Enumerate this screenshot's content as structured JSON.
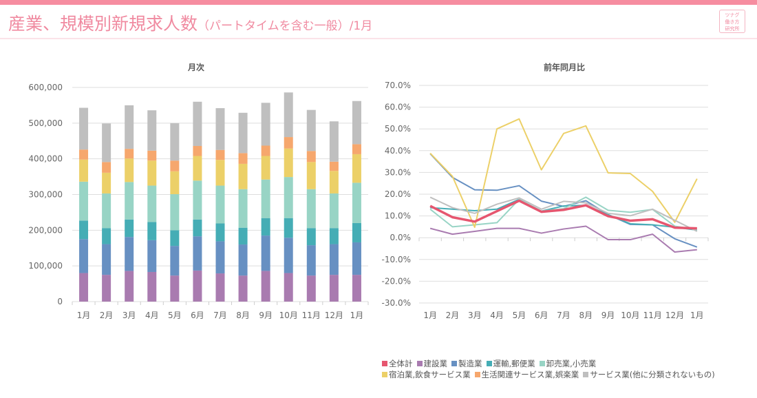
{
  "header": {
    "title": "産業、規模別新規求人数",
    "subtitle": "（パートタイムを含む一般）",
    "month": "/1月",
    "logo": "ツナグ働き方研究所"
  },
  "series_meta": [
    {
      "name": "全体計",
      "color": "#e6566f"
    },
    {
      "name": "建設業",
      "color": "#a97bb0"
    },
    {
      "name": "製造業",
      "color": "#6790c2"
    },
    {
      "name": "運輸,郵便業",
      "color": "#45adb5"
    },
    {
      "name": "卸売業,小売業",
      "color": "#98d4c5"
    },
    {
      "name": "宿泊業,飲食サービス業",
      "color": "#ecd068"
    },
    {
      "name": "生活関連サービス業,娯楽業",
      "color": "#f6a76d"
    },
    {
      "name": "サービス業(他に分類されないもの)",
      "color": "#bfbfbf"
    }
  ],
  "chart_data": [
    {
      "type": "bar",
      "stacked": true,
      "title": "月次",
      "categories": [
        "1月",
        "2月",
        "3月",
        "4月",
        "5月",
        "6月",
        "7月",
        "8月",
        "9月",
        "10月",
        "11月",
        "12月",
        "1月"
      ],
      "ylim": [
        0,
        600000
      ],
      "yticks": [
        "0",
        "100,000",
        "200,000",
        "300,000",
        "400,000",
        "500,000",
        "600,000"
      ],
      "grid": true,
      "series": [
        {
          "name": "建設業",
          "values": [
            80000,
            75000,
            86000,
            83000,
            73000,
            87000,
            79000,
            73000,
            86000,
            80000,
            73000,
            75000,
            75000
          ]
        },
        {
          "name": "製造業",
          "values": [
            95000,
            86000,
            95000,
            89000,
            83000,
            96000,
            90000,
            87000,
            99000,
            99000,
            85000,
            86000,
            91000
          ]
        },
        {
          "name": "運輸,郵便業",
          "values": [
            52000,
            45000,
            49000,
            51000,
            44000,
            47000,
            50000,
            47000,
            49000,
            55000,
            48000,
            45000,
            54000
          ]
        },
        {
          "name": "卸売業,小売業",
          "values": [
            109000,
            97000,
            105000,
            102000,
            101000,
            109000,
            106000,
            108000,
            108000,
            115000,
            109000,
            97000,
            113000
          ]
        },
        {
          "name": "宿泊業,飲食サービス業",
          "values": [
            62000,
            58000,
            66000,
            70000,
            64000,
            69000,
            72000,
            71000,
            66000,
            80000,
            76000,
            63000,
            80000
          ]
        },
        {
          "name": "生活関連サービス業,娯楽業",
          "values": [
            28000,
            30000,
            27000,
            28000,
            30000,
            28000,
            28000,
            30000,
            29000,
            32000,
            31000,
            26000,
            28000
          ]
        },
        {
          "name": "サービス業(他に分類されないもの)",
          "values": [
            117000,
            108000,
            122000,
            113000,
            105000,
            124000,
            117000,
            113000,
            120000,
            125000,
            115000,
            113000,
            121000
          ]
        }
      ]
    },
    {
      "type": "line",
      "title": "前年同月比",
      "categories": [
        "1月",
        "2月",
        "3月",
        "4月",
        "5月",
        "6月",
        "7月",
        "8月",
        "9月",
        "10月",
        "11月",
        "12月",
        "1月"
      ],
      "ylim": [
        -30,
        70
      ],
      "yticks": [
        "-30.0%",
        "-20.0%",
        "-10.0%",
        "0.0%",
        "10.0%",
        "20.0%",
        "30.0%",
        "40.0%",
        "50.0%",
        "60.0%",
        "70.0%"
      ],
      "grid": true,
      "series": [
        {
          "name": "建設業",
          "values": [
            4.3,
            1.6,
            2.9,
            4.3,
            4.3,
            2.1,
            4.0,
            5.3,
            -0.9,
            -0.9,
            1.6,
            -6.6,
            -5.5
          ]
        },
        {
          "name": "製造業",
          "values": [
            38.6,
            27.7,
            22.0,
            21.8,
            23.9,
            16.8,
            14.4,
            17.0,
            10.6,
            6.1,
            5.9,
            -0.5,
            -4.3
          ]
        },
        {
          "name": "運輸,郵便業",
          "values": [
            13.8,
            13.1,
            12.4,
            13.1,
            17.6,
            12.2,
            14.6,
            14.9,
            10.6,
            6.4,
            5.9,
            4.8,
            3.5
          ]
        },
        {
          "name": "卸売業,小売業",
          "values": [
            13.1,
            5.0,
            5.9,
            6.9,
            17.6,
            12.2,
            13.3,
            18.6,
            12.6,
            11.7,
            13.0,
            5.3,
            3.7
          ]
        },
        {
          "name": "宿泊業,飲食サービス業",
          "values": [
            38.8,
            28.2,
            4.8,
            50.0,
            54.6,
            31.2,
            47.9,
            51.4,
            29.8,
            29.5,
            21.3,
            7.1,
            27.1
          ]
        },
        {
          "name": "サービス業(他に分類されないもの)",
          "values": [
            18.6,
            13.8,
            11.2,
            15.4,
            18.3,
            13.1,
            16.7,
            16.0,
            11.2,
            10.1,
            13.1,
            8.0,
            2.9
          ]
        },
        {
          "name": "全体計",
          "values": [
            14.6,
            9.4,
            7.4,
            12.2,
            17.0,
            11.9,
            12.8,
            14.9,
            9.9,
            7.8,
            8.5,
            4.6,
            4.3
          ]
        }
      ]
    }
  ]
}
